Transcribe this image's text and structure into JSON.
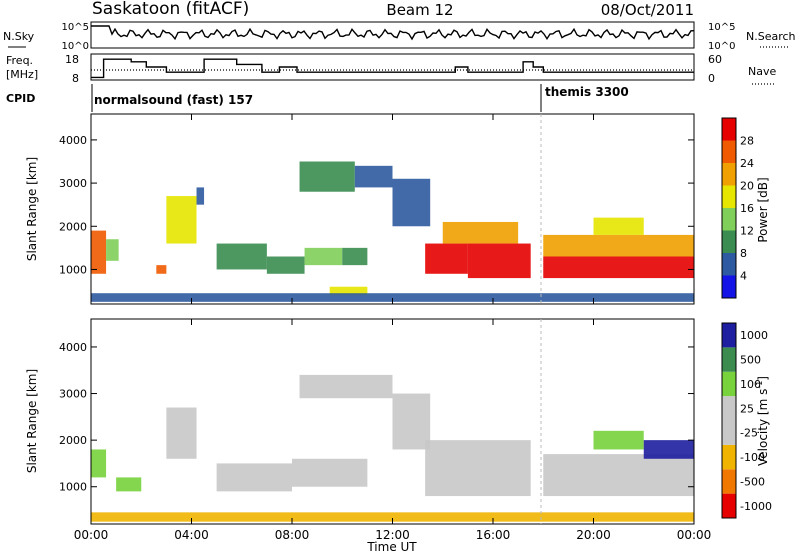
{
  "header": {
    "station": "Saskatoon (fitACF)",
    "beam": "Beam 12",
    "date": "08/Oct/2011"
  },
  "nsky_panel": {
    "left_label": "N.Sky",
    "right_label": "N.Search",
    "left_ticks": [
      "10^5",
      "10^0"
    ],
    "right_ticks": [
      "10^5",
      "10^0"
    ]
  },
  "freq_panel": {
    "left_label_1": "Freq.",
    "left_label_2": "[MHz]",
    "right_label": "Nave",
    "left_ticks": [
      "18",
      "8"
    ],
    "right_ticks": [
      "60",
      "0"
    ]
  },
  "cpid": {
    "label": "CPID",
    "modes": [
      "normalsound (fast) 157",
      "themis 3300"
    ]
  },
  "colors": {
    "power_scale": [
      "#1414e6",
      "#2d5aa0",
      "#3a8c50",
      "#7fcf5a",
      "#e6e600",
      "#f0a000",
      "#f05a00",
      "#e60000"
    ],
    "velocity_scale": [
      "#e60000",
      "#f07800",
      "#f0b400",
      "#c8c8c8",
      "#c8c8c8",
      "#78d23c",
      "#3c8c50",
      "#1e1ea0"
    ],
    "cpid_line": "#000000"
  },
  "chart_data": [
    {
      "type": "heatmap",
      "title": "Power",
      "xlabel": "Time UT",
      "ylabel": "Slant Range [km]",
      "x_ticks": [
        "00:00",
        "04:00",
        "08:00",
        "12:00",
        "16:00",
        "20:00",
        "00:00"
      ],
      "xlim": [
        0,
        24
      ],
      "y_ticks": [
        1000,
        2000,
        3000,
        4000
      ],
      "ylim": [
        200,
        4600
      ],
      "colorbar": {
        "label": "Power [dB]",
        "ticks": [
          4,
          8,
          12,
          16,
          20,
          24,
          28
        ],
        "range": [
          0,
          32
        ]
      },
      "regions": [
        {
          "t0": 0.0,
          "t1": 0.6,
          "r0": 900,
          "r1": 1900,
          "level": 6
        },
        {
          "t0": 0.6,
          "t1": 1.1,
          "r0": 1200,
          "r1": 1700,
          "level": 3
        },
        {
          "t0": 2.6,
          "t1": 3.0,
          "r0": 900,
          "r1": 1100,
          "level": 6
        },
        {
          "t0": 3.0,
          "t1": 4.2,
          "r0": 1600,
          "r1": 2700,
          "level": 4
        },
        {
          "t0": 4.2,
          "t1": 4.5,
          "r0": 2500,
          "r1": 2900,
          "level": 1
        },
        {
          "t0": 5.0,
          "t1": 7.0,
          "r0": 1000,
          "r1": 1600,
          "level": 2
        },
        {
          "t0": 7.0,
          "t1": 8.5,
          "r0": 900,
          "r1": 1300,
          "level": 2
        },
        {
          "t0": 8.5,
          "t1": 10.0,
          "r0": 1100,
          "r1": 1500,
          "level": 3
        },
        {
          "t0": 10.0,
          "t1": 11.0,
          "r0": 1100,
          "r1": 1500,
          "level": 2
        },
        {
          "t0": 8.3,
          "t1": 10.5,
          "r0": 2800,
          "r1": 3500,
          "level": 2
        },
        {
          "t0": 10.5,
          "t1": 12.0,
          "r0": 2900,
          "r1": 3400,
          "level": 1
        },
        {
          "t0": 12.0,
          "t1": 13.5,
          "r0": 2000,
          "r1": 3100,
          "level": 1
        },
        {
          "t0": 13.3,
          "t1": 15.0,
          "r0": 900,
          "r1": 1600,
          "level": 7
        },
        {
          "t0": 14.0,
          "t1": 17.0,
          "r0": 1600,
          "r1": 2100,
          "level": 5
        },
        {
          "t0": 15.0,
          "t1": 17.5,
          "r0": 800,
          "r1": 1600,
          "level": 7
        },
        {
          "t0": 18.0,
          "t1": 24.0,
          "r0": 800,
          "r1": 1300,
          "level": 7
        },
        {
          "t0": 18.0,
          "t1": 24.0,
          "r0": 1300,
          "r1": 1800,
          "level": 5
        },
        {
          "t0": 20.0,
          "t1": 22.0,
          "r0": 1800,
          "r1": 2200,
          "level": 4
        },
        {
          "t0": 9.5,
          "t1": 11.0,
          "r0": 400,
          "r1": 600,
          "level": 4
        },
        {
          "t0": 0.0,
          "t1": 24.0,
          "r0": 250,
          "r1": 450,
          "level": 1
        }
      ]
    },
    {
      "type": "heatmap",
      "title": "Velocity",
      "xlabel": "Time UT",
      "ylabel": "Slant Range [km]",
      "x_ticks": [
        "00:00",
        "04:00",
        "08:00",
        "12:00",
        "16:00",
        "20:00",
        "00:00"
      ],
      "xlim": [
        0,
        24
      ],
      "y_ticks": [
        1000,
        2000,
        3000,
        4000
      ],
      "ylim": [
        200,
        4600
      ],
      "colorbar": {
        "label": "Velocity [m s-1]",
        "label_main": "Velocity [m s",
        "label_exp": "-1",
        "label_end": "]",
        "ticks": [
          "1000",
          "500",
          "100",
          "25",
          "-25",
          "-100",
          "-500",
          "-1000"
        ]
      },
      "regions": [
        {
          "t0": 0.0,
          "t1": 0.6,
          "r0": 1200,
          "r1": 1800,
          "level": 5
        },
        {
          "t0": 1.0,
          "t1": 2.0,
          "r0": 900,
          "r1": 1200,
          "level": 5
        },
        {
          "t0": 3.0,
          "t1": 4.2,
          "r0": 1600,
          "r1": 2700,
          "level": 3
        },
        {
          "t0": 5.0,
          "t1": 8.0,
          "r0": 900,
          "r1": 1500,
          "level": 3
        },
        {
          "t0": 8.0,
          "t1": 11.0,
          "r0": 1000,
          "r1": 1600,
          "level": 4
        },
        {
          "t0": 8.3,
          "t1": 12.0,
          "r0": 2900,
          "r1": 3400,
          "level": 3
        },
        {
          "t0": 12.0,
          "t1": 13.5,
          "r0": 1800,
          "r1": 3000,
          "level": 3
        },
        {
          "t0": 13.3,
          "t1": 17.5,
          "r0": 800,
          "r1": 2000,
          "level": 4
        },
        {
          "t0": 18.0,
          "t1": 24.0,
          "r0": 800,
          "r1": 1700,
          "level": 3
        },
        {
          "t0": 20.0,
          "t1": 22.0,
          "r0": 1800,
          "r1": 2200,
          "level": 5
        },
        {
          "t0": 22.0,
          "t1": 24.0,
          "r0": 1600,
          "r1": 2000,
          "level": 7
        },
        {
          "t0": 0.0,
          "t1": 24.0,
          "r0": 250,
          "r1": 450,
          "level": 2
        }
      ]
    },
    {
      "type": "line",
      "title": "Frequency",
      "ylim": [
        8,
        18
      ],
      "series": [
        {
          "x": [
            0,
            0.5,
            0.5,
            1.6,
            1.6,
            2.2,
            2.2,
            3.0,
            3.0,
            4.5,
            4.5,
            5.8,
            5.8,
            6.8,
            6.8,
            7.5,
            7.5,
            8.2,
            8.2,
            14.5,
            14.5,
            15.0,
            15.0,
            17.2,
            17.2,
            17.6,
            17.6,
            18.0,
            18.0,
            24
          ],
          "y": [
            9,
            9,
            16,
            16,
            15,
            15,
            13,
            13,
            11,
            11,
            16,
            16,
            14,
            14,
            11,
            11,
            13,
            13,
            11,
            11,
            13,
            13,
            11,
            11,
            15,
            15,
            13,
            13,
            11,
            11
          ]
        }
      ]
    }
  ]
}
